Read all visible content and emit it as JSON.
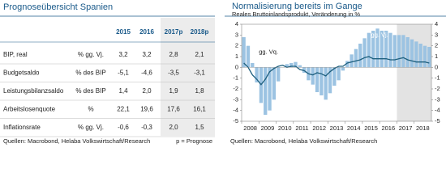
{
  "table_panel": {
    "title": "Prognoseübersicht Spanien",
    "columns": [
      "2015",
      "2016",
      "2017p",
      "2018p"
    ],
    "rows": [
      {
        "label": "BIP, real",
        "unit": "% gg. Vj.",
        "values": [
          "3,2",
          "3,2",
          "2,8",
          "2,1"
        ]
      },
      {
        "label": "Budgetsaldo",
        "unit": "% des BIP",
        "values": [
          "-5,1",
          "-4,6",
          "-3,5",
          "-3,1"
        ]
      },
      {
        "label": "Leistungsbilanzsaldo",
        "unit": "% des BIP",
        "values": [
          "1,4",
          "2,0",
          "1,9",
          "1,8"
        ]
      },
      {
        "label": "Arbeitslosenquote",
        "unit": "%",
        "values": [
          "22,1",
          "19,6",
          "17,6",
          "16,1"
        ]
      },
      {
        "label": "Inflationsrate",
        "unit": "% gg. Vj.",
        "values": [
          "-0,6",
          "-0,3",
          "2,0",
          "1,5"
        ]
      }
    ],
    "source": "Quellen: Macrobond, Helaba Volkswirtschaft/Research",
    "note": "p = Prognose"
  },
  "chart_data": {
    "type": "combo",
    "title": "Normalisierung bereits im Gange",
    "subtitle": "Reales Bruttoinlandsprodukt, Veränderung in %",
    "source": "Quellen: Macrobond, Helaba Volkswirtschaft/Research",
    "categories": [
      "2008",
      null,
      null,
      null,
      "2009",
      null,
      null,
      null,
      "2010",
      null,
      null,
      null,
      "2011",
      null,
      null,
      null,
      "2012",
      null,
      null,
      null,
      "2013",
      null,
      null,
      null,
      "2014",
      null,
      null,
      null,
      "2015",
      null,
      null,
      null,
      "2016",
      null,
      null,
      null,
      "2017",
      null,
      null,
      null,
      "2018",
      null,
      null,
      null
    ],
    "shaded_from": "2017",
    "series": [
      {
        "name": "gg. Vj.",
        "type": "bar",
        "color": "#9cc3e2",
        "values": [
          2.8,
          2.0,
          0.4,
          -1.4,
          -3.3,
          -4.4,
          -4.0,
          -3.0,
          -1.3,
          0.0,
          0.3,
          0.4,
          0.5,
          0.2,
          -0.5,
          -1.2,
          -1.6,
          -2.3,
          -2.6,
          -3.0,
          -2.4,
          -1.7,
          -1.2,
          -0.3,
          0.6,
          1.2,
          1.7,
          2.2,
          2.7,
          3.2,
          3.4,
          3.6,
          3.4,
          3.4,
          3.2,
          3.0,
          3.0,
          3.0,
          2.8,
          2.6,
          2.4,
          2.2,
          2.0,
          1.9
        ]
      },
      {
        "name": "gg. Vq.",
        "type": "line",
        "color": "#1d5f7e",
        "values": [
          0.4,
          0.0,
          -0.7,
          -1.1,
          -1.6,
          -1.1,
          -0.4,
          -0.1,
          0.1,
          0.2,
          0.0,
          0.1,
          0.1,
          -0.2,
          -0.3,
          -0.6,
          -0.7,
          -0.5,
          -0.6,
          -0.8,
          -0.4,
          -0.1,
          0.1,
          0.1,
          0.4,
          0.5,
          0.6,
          0.7,
          0.9,
          1.0,
          0.8,
          0.8,
          0.8,
          0.8,
          0.7,
          0.7,
          0.8,
          0.9,
          0.7,
          0.6,
          0.5,
          0.5,
          0.5,
          0.4
        ]
      }
    ],
    "ylim": [
      -5,
      4
    ],
    "yticks": [
      -5,
      -4,
      -3,
      -2,
      -1,
      0,
      1,
      2,
      3,
      4
    ],
    "mirror_y_axis": true
  }
}
